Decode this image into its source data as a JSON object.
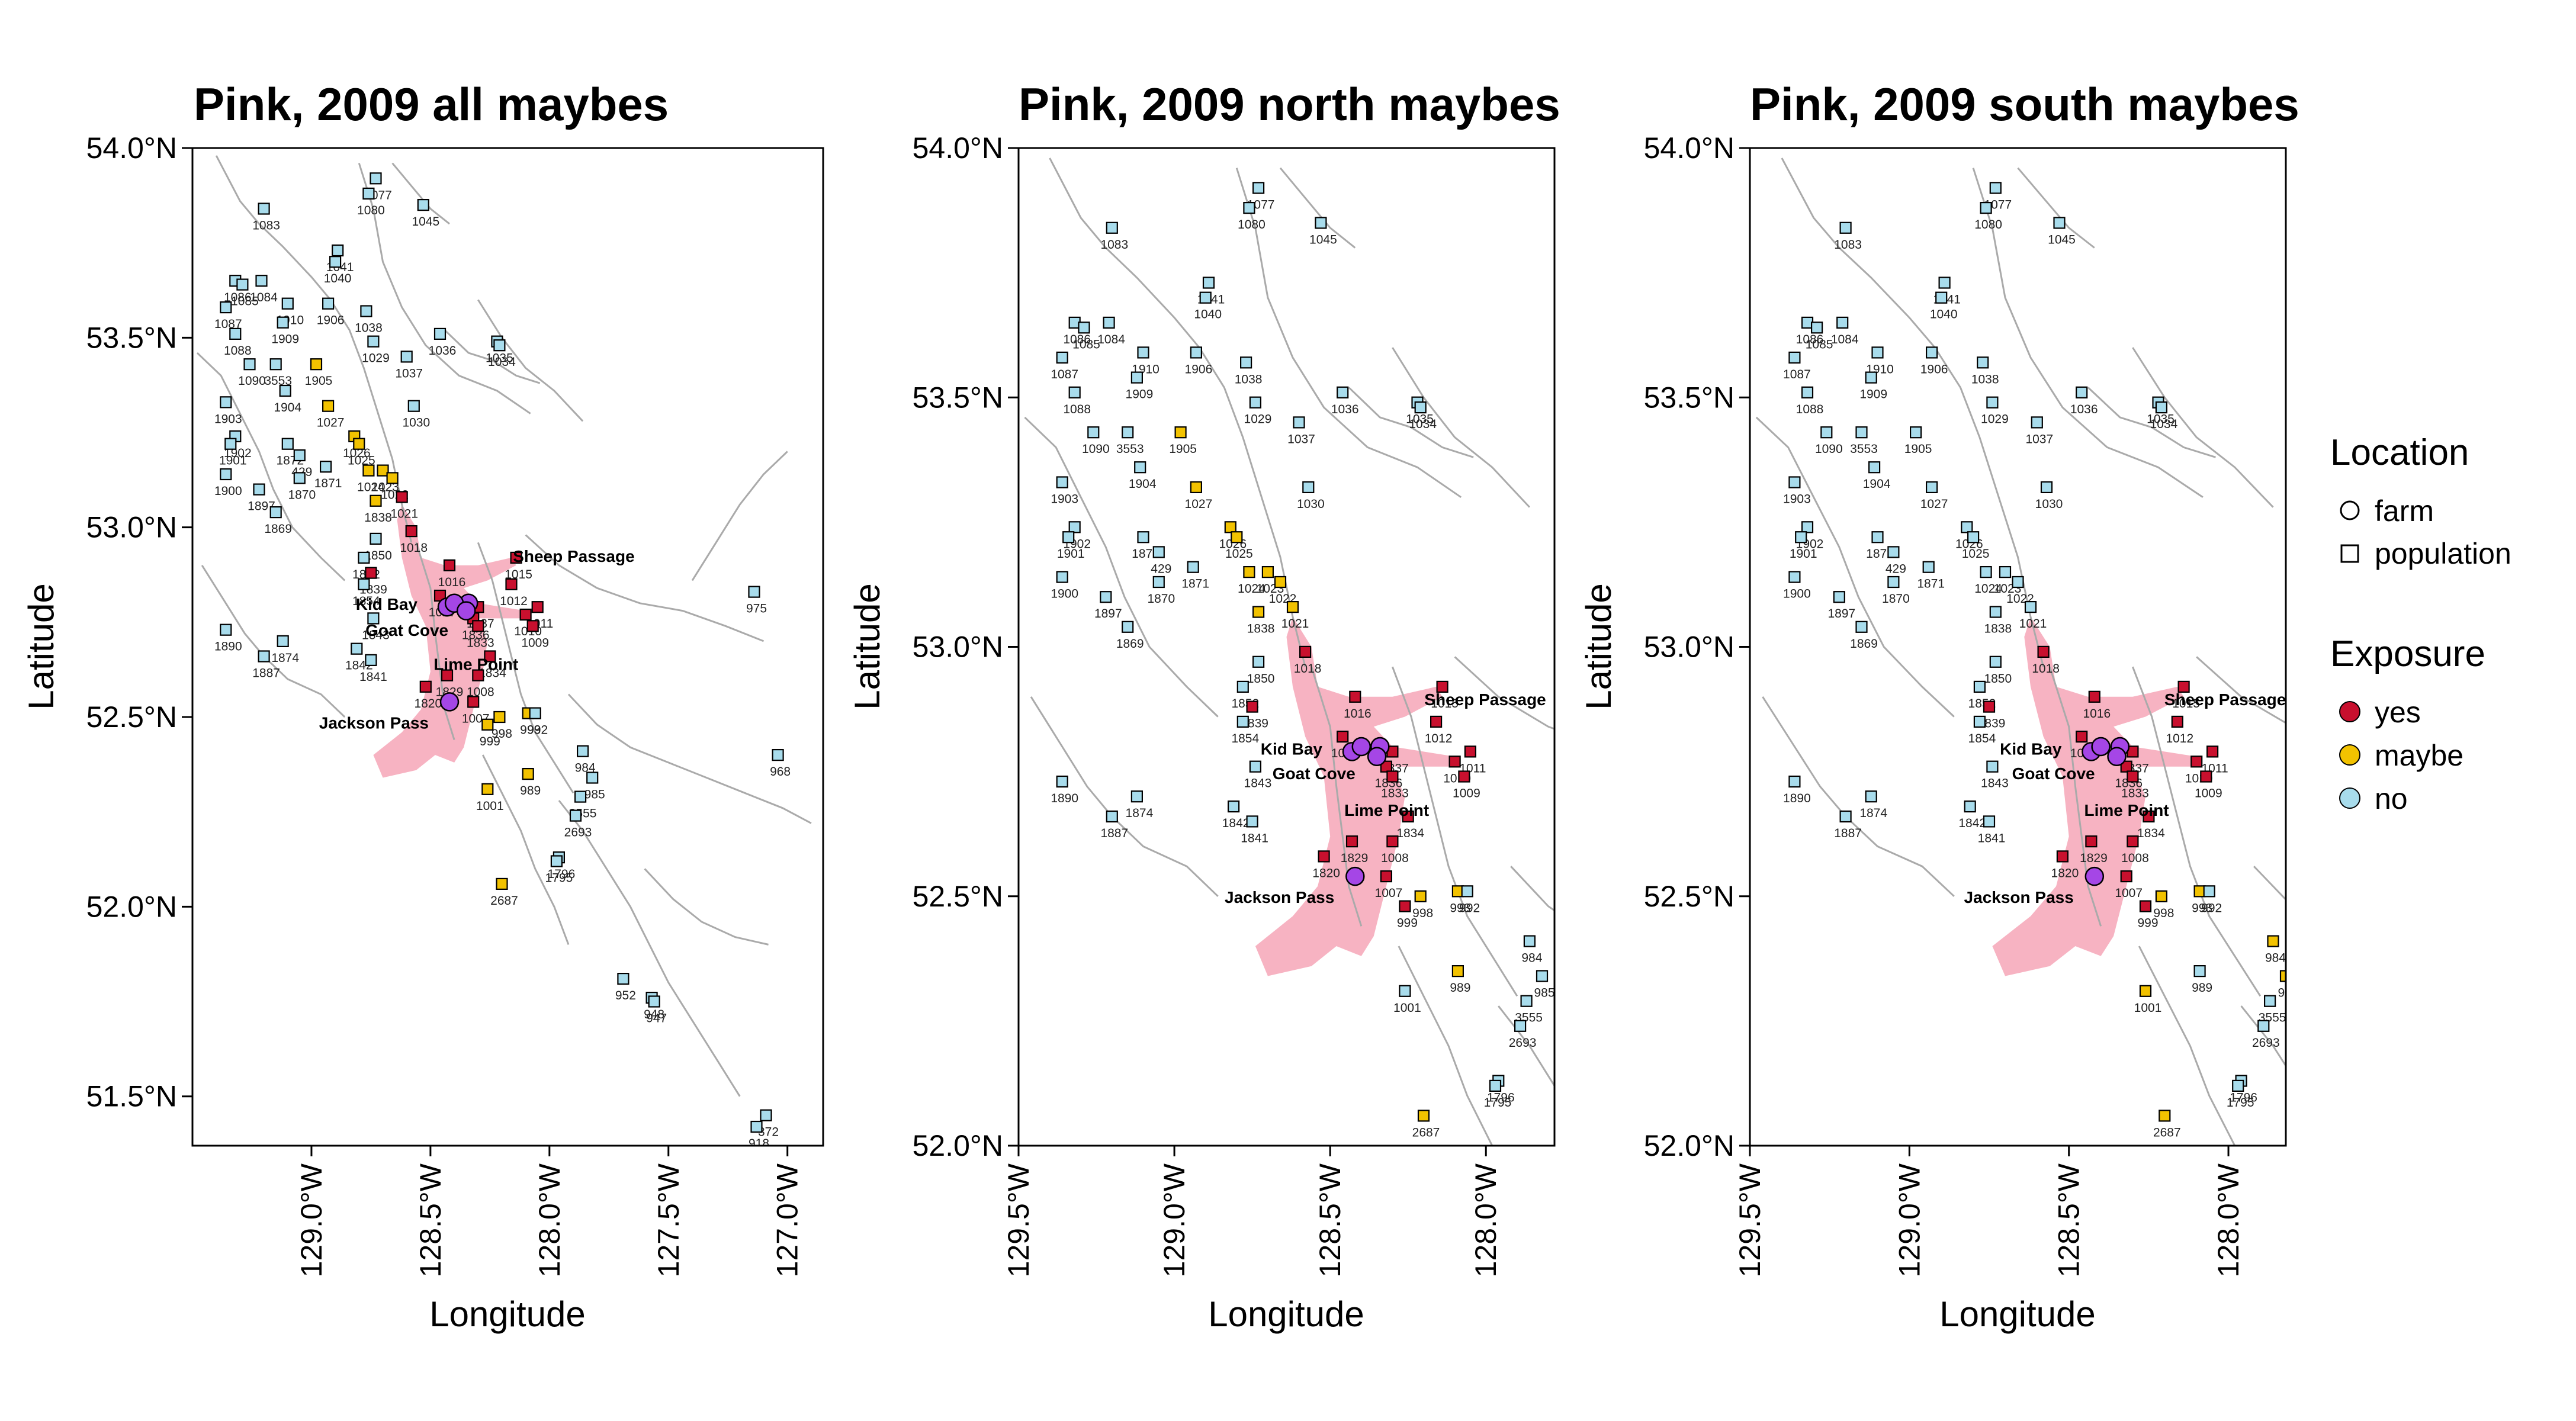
{
  "figure": {
    "panels": [
      {
        "title": "Pink, 2009 all maybes",
        "xlabel": "Longitude",
        "ylabel": "Latitude",
        "x_range": [
          -129.5,
          -126.85
        ],
        "y_range": [
          51.37,
          54.0
        ],
        "x_ticks": [
          "129.0°W",
          "128.5°W",
          "128.0°W",
          "127.5°W",
          "127.0°W"
        ],
        "x_tick_values": [
          -129.0,
          -128.5,
          -128.0,
          -127.5,
          -127.0
        ],
        "y_ticks": [
          "51.5°N",
          "52.0°N",
          "52.5°N",
          "53.0°N",
          "53.5°N",
          "54.0°N"
        ],
        "y_tick_values": [
          51.5,
          52.0,
          52.5,
          53.0,
          53.5,
          54.0
        ]
      },
      {
        "title": "Pink, 2009 north maybes",
        "xlabel": "Longitude",
        "ylabel": "Latitude",
        "x_range": [
          -129.5,
          -127.78
        ],
        "y_range": [
          52.0,
          54.0
        ],
        "x_ticks": [
          "129.5°W",
          "129.0°W",
          "128.5°W",
          "128.0°W"
        ],
        "x_tick_values": [
          -129.5,
          -129.0,
          -128.5,
          -128.0
        ],
        "y_ticks": [
          "52.0°N",
          "52.5°N",
          "53.0°N",
          "53.5°N",
          "54.0°N"
        ],
        "y_tick_values": [
          52.0,
          52.5,
          53.0,
          53.5,
          54.0
        ]
      },
      {
        "title": "Pink, 2009 south maybes",
        "xlabel": "Longitude",
        "ylabel": "Latitude",
        "x_range": [
          -129.5,
          -127.82
        ],
        "y_range": [
          52.0,
          54.0
        ],
        "x_ticks": [
          "129.5°W",
          "129.0°W",
          "128.5°W",
          "128.0°W"
        ],
        "x_tick_values": [
          -129.5,
          -129.0,
          -128.5,
          -128.0
        ],
        "y_ticks": [
          "52.0°N",
          "52.5°N",
          "53.0°N",
          "53.5°N",
          "54.0°N"
        ],
        "y_tick_values": [
          52.0,
          52.5,
          53.0,
          53.5,
          54.0
        ]
      }
    ]
  },
  "legend": {
    "location_title": "Location",
    "location_items": [
      {
        "label": "farm",
        "shape": "circle"
      },
      {
        "label": "population",
        "shape": "square"
      }
    ],
    "exposure_title": "Exposure",
    "exposure_items": [
      {
        "label": "yes",
        "color": "#c8102e"
      },
      {
        "label": "maybe",
        "color": "#f2c200"
      },
      {
        "label": "no",
        "color": "#a8dcec"
      }
    ]
  },
  "colors": {
    "yes": "#c8102e",
    "maybe": "#f2c200",
    "no": "#a8dcec",
    "farm": "#a546e6",
    "route": "#f7b3c2",
    "coast": "#aaaaaa"
  },
  "farms": [
    {
      "name": "Sheep Passage",
      "lon": -128.34,
      "lat": 52.8
    },
    {
      "name": "Kid Bay",
      "lon": -128.43,
      "lat": 52.79
    },
    {
      "name": "Goat Cove",
      "lon": -128.4,
      "lat": 52.8
    },
    {
      "name": "Lime Point",
      "lon": -128.35,
      "lat": 52.78
    },
    {
      "name": "Jackson Pass",
      "lon": -128.42,
      "lat": 52.54
    }
  ],
  "sites": [
    {
      "id": "1077",
      "lon": -128.73,
      "lat": 53.92
    },
    {
      "id": "1080",
      "lon": -128.76,
      "lat": 53.88
    },
    {
      "id": "1045",
      "lon": -128.53,
      "lat": 53.85
    },
    {
      "id": "1083",
      "lon": -129.2,
      "lat": 53.84
    },
    {
      "id": "1041",
      "lon": -128.89,
      "lat": 53.73
    },
    {
      "id": "1040",
      "lon": -128.9,
      "lat": 53.7
    },
    {
      "id": "1086",
      "lon": -129.32,
      "lat": 53.65
    },
    {
      "id": "1084",
      "lon": -129.21,
      "lat": 53.65
    },
    {
      "id": "1085",
      "lon": -129.29,
      "lat": 53.64
    },
    {
      "id": "1910",
      "lon": -129.1,
      "lat": 53.59
    },
    {
      "id": "1906",
      "lon": -128.93,
      "lat": 53.59
    },
    {
      "id": "1038",
      "lon": -128.77,
      "lat": 53.57
    },
    {
      "id": "1087",
      "lon": -129.36,
      "lat": 53.58
    },
    {
      "id": "1909",
      "lon": -129.12,
      "lat": 53.54
    },
    {
      "id": "1036",
      "lon": -128.46,
      "lat": 53.51
    },
    {
      "id": "1035",
      "lon": -128.22,
      "lat": 53.49
    },
    {
      "id": "1034",
      "lon": -128.21,
      "lat": 53.48
    },
    {
      "id": "1029",
      "lon": -128.74,
      "lat": 53.49
    },
    {
      "id": "1088",
      "lon": -129.32,
      "lat": 53.51
    },
    {
      "id": "1037",
      "lon": -128.6,
      "lat": 53.45
    },
    {
      "id": "1090",
      "lon": -129.26,
      "lat": 53.43
    },
    {
      "id": "3553",
      "lon": -129.15,
      "lat": 53.43
    },
    {
      "id": "1905",
      "lon": -128.98,
      "lat": 53.43
    },
    {
      "id": "1904",
      "lon": -129.11,
      "lat": 53.36
    },
    {
      "id": "1903",
      "lon": -129.36,
      "lat": 53.33
    },
    {
      "id": "1030",
      "lon": -128.57,
      "lat": 53.32
    },
    {
      "id": "1027",
      "lon": -128.93,
      "lat": 53.32
    },
    {
      "id": "1026",
      "lon": -128.82,
      "lat": 53.24
    },
    {
      "id": "1902",
      "lon": -129.32,
      "lat": 53.24
    },
    {
      "id": "1872",
      "lon": -129.1,
      "lat": 53.22
    },
    {
      "id": "1025",
      "lon": -128.8,
      "lat": 53.22
    },
    {
      "id": "1901",
      "lon": -129.34,
      "lat": 53.22
    },
    {
      "id": "429",
      "lon": -129.05,
      "lat": 53.19
    },
    {
      "id": "1023",
      "lon": -128.7,
      "lat": 53.15
    },
    {
      "id": "1871",
      "lon": -128.94,
      "lat": 53.16
    },
    {
      "id": "1900",
      "lon": -129.36,
      "lat": 53.14
    },
    {
      "id": "1024",
      "lon": -128.76,
      "lat": 53.15
    },
    {
      "id": "1022",
      "lon": -128.66,
      "lat": 53.13
    },
    {
      "id": "1870",
      "lon": -129.05,
      "lat": 53.13
    },
    {
      "id": "1897",
      "lon": -129.22,
      "lat": 53.1
    },
    {
      "id": "1021",
      "lon": -128.62,
      "lat": 53.08
    },
    {
      "id": "1838",
      "lon": -128.73,
      "lat": 53.07
    },
    {
      "id": "1869",
      "lon": -129.15,
      "lat": 53.04
    },
    {
      "id": "1018",
      "lon": -128.58,
      "lat": 52.99
    },
    {
      "id": "1015",
      "lon": -128.14,
      "lat": 52.92
    },
    {
      "id": "1016",
      "lon": -128.42,
      "lat": 52.9
    },
    {
      "id": "1850",
      "lon": -128.73,
      "lat": 52.97
    },
    {
      "id": "1852",
      "lon": -128.78,
      "lat": 52.92
    },
    {
      "id": "1839",
      "lon": -128.75,
      "lat": 52.88
    },
    {
      "id": "1012",
      "lon": -128.16,
      "lat": 52.85
    },
    {
      "id": "1017",
      "lon": -128.46,
      "lat": 52.82
    },
    {
      "id": "1854",
      "lon": -128.78,
      "lat": 52.85
    },
    {
      "id": "975",
      "lon": -127.14,
      "lat": 52.83
    },
    {
      "id": "1011",
      "lon": -128.05,
      "lat": 52.79
    },
    {
      "id": "1837",
      "lon": -128.3,
      "lat": 52.79
    },
    {
      "id": "1010",
      "lon": -128.1,
      "lat": 52.77
    },
    {
      "id": "1843",
      "lon": -128.74,
      "lat": 52.76
    },
    {
      "id": "1836",
      "lon": -128.32,
      "lat": 52.76
    },
    {
      "id": "1833",
      "lon": -128.3,
      "lat": 52.74
    },
    {
      "id": "1009",
      "lon": -128.07,
      "lat": 52.74
    },
    {
      "id": "1890",
      "lon": -129.36,
      "lat": 52.73
    },
    {
      "id": "1874",
      "lon": -129.12,
      "lat": 52.7
    },
    {
      "id": "1887",
      "lon": -129.2,
      "lat": 52.66
    },
    {
      "id": "1842",
      "lon": -128.81,
      "lat": 52.68
    },
    {
      "id": "1834",
      "lon": -128.25,
      "lat": 52.66
    },
    {
      "id": "1841",
      "lon": -128.75,
      "lat": 52.65
    },
    {
      "id": "1829",
      "lon": -128.43,
      "lat": 52.61
    },
    {
      "id": "1008",
      "lon": -128.3,
      "lat": 52.61
    },
    {
      "id": "1820",
      "lon": -128.52,
      "lat": 52.58
    },
    {
      "id": "1007",
      "lon": -128.32,
      "lat": 52.54
    },
    {
      "id": "993",
      "lon": -128.09,
      "lat": 52.51
    },
    {
      "id": "992",
      "lon": -128.06,
      "lat": 52.51
    },
    {
      "id": "998",
      "lon": -128.21,
      "lat": 52.5
    },
    {
      "id": "999",
      "lon": -128.26,
      "lat": 52.48
    },
    {
      "id": "984",
      "lon": -127.86,
      "lat": 52.41
    },
    {
      "id": "968",
      "lon": -127.04,
      "lat": 52.4
    },
    {
      "id": "985",
      "lon": -127.82,
      "lat": 52.34
    },
    {
      "id": "989",
      "lon": -128.09,
      "lat": 52.35
    },
    {
      "id": "1001",
      "lon": -128.26,
      "lat": 52.31
    },
    {
      "id": "3555",
      "lon": -127.87,
      "lat": 52.29
    },
    {
      "id": "2693",
      "lon": -127.89,
      "lat": 52.24
    },
    {
      "id": "1796",
      "lon": -127.96,
      "lat": 52.13
    },
    {
      "id": "1795",
      "lon": -127.97,
      "lat": 52.12
    },
    {
      "id": "2687",
      "lon": -128.2,
      "lat": 52.06
    },
    {
      "id": "952",
      "lon": -127.69,
      "lat": 51.81
    },
    {
      "id": "948",
      "lon": -127.57,
      "lat": 51.76
    },
    {
      "id": "947",
      "lon": -127.56,
      "lat": 51.75
    },
    {
      "id": "372",
      "lon": -127.09,
      "lat": 51.45
    },
    {
      "id": "918",
      "lon": -127.13,
      "lat": 51.42
    }
  ],
  "exposure": {
    "all": {
      "yes": [
        "1021",
        "1018",
        "1016",
        "1015",
        "1017",
        "1839",
        "1837",
        "1012",
        "1836",
        "1833",
        "1011",
        "1010",
        "1009",
        "1834",
        "1829",
        "1008",
        "1820",
        "1007"
      ],
      "maybe": [
        "1905",
        "1027",
        "1026",
        "1025",
        "1023",
        "1024",
        "1022",
        "1838",
        "993",
        "998",
        "999",
        "989",
        "1001",
        "2687"
      ]
    },
    "north": {
      "yes": [
        "1018",
        "1016",
        "1015",
        "1017",
        "1839",
        "1837",
        "1012",
        "1836",
        "1833",
        "1011",
        "1010",
        "1009",
        "1834",
        "1829",
        "1008",
        "1820",
        "1007",
        "999"
      ],
      "maybe": [
        "1905",
        "1027",
        "1026",
        "1025",
        "1023",
        "1024",
        "1022",
        "1838",
        "1021",
        "993",
        "998",
        "989",
        "2687"
      ]
    },
    "south": {
      "yes": [
        "1018",
        "1016",
        "1015",
        "1017",
        "1839",
        "1837",
        "1012",
        "1836",
        "1833",
        "1011",
        "1010",
        "1009",
        "1834",
        "1829",
        "1008",
        "1820",
        "1007",
        "999"
      ],
      "maybe": [
        "993",
        "998",
        "1001",
        "984",
        "985",
        "2687"
      ]
    }
  }
}
